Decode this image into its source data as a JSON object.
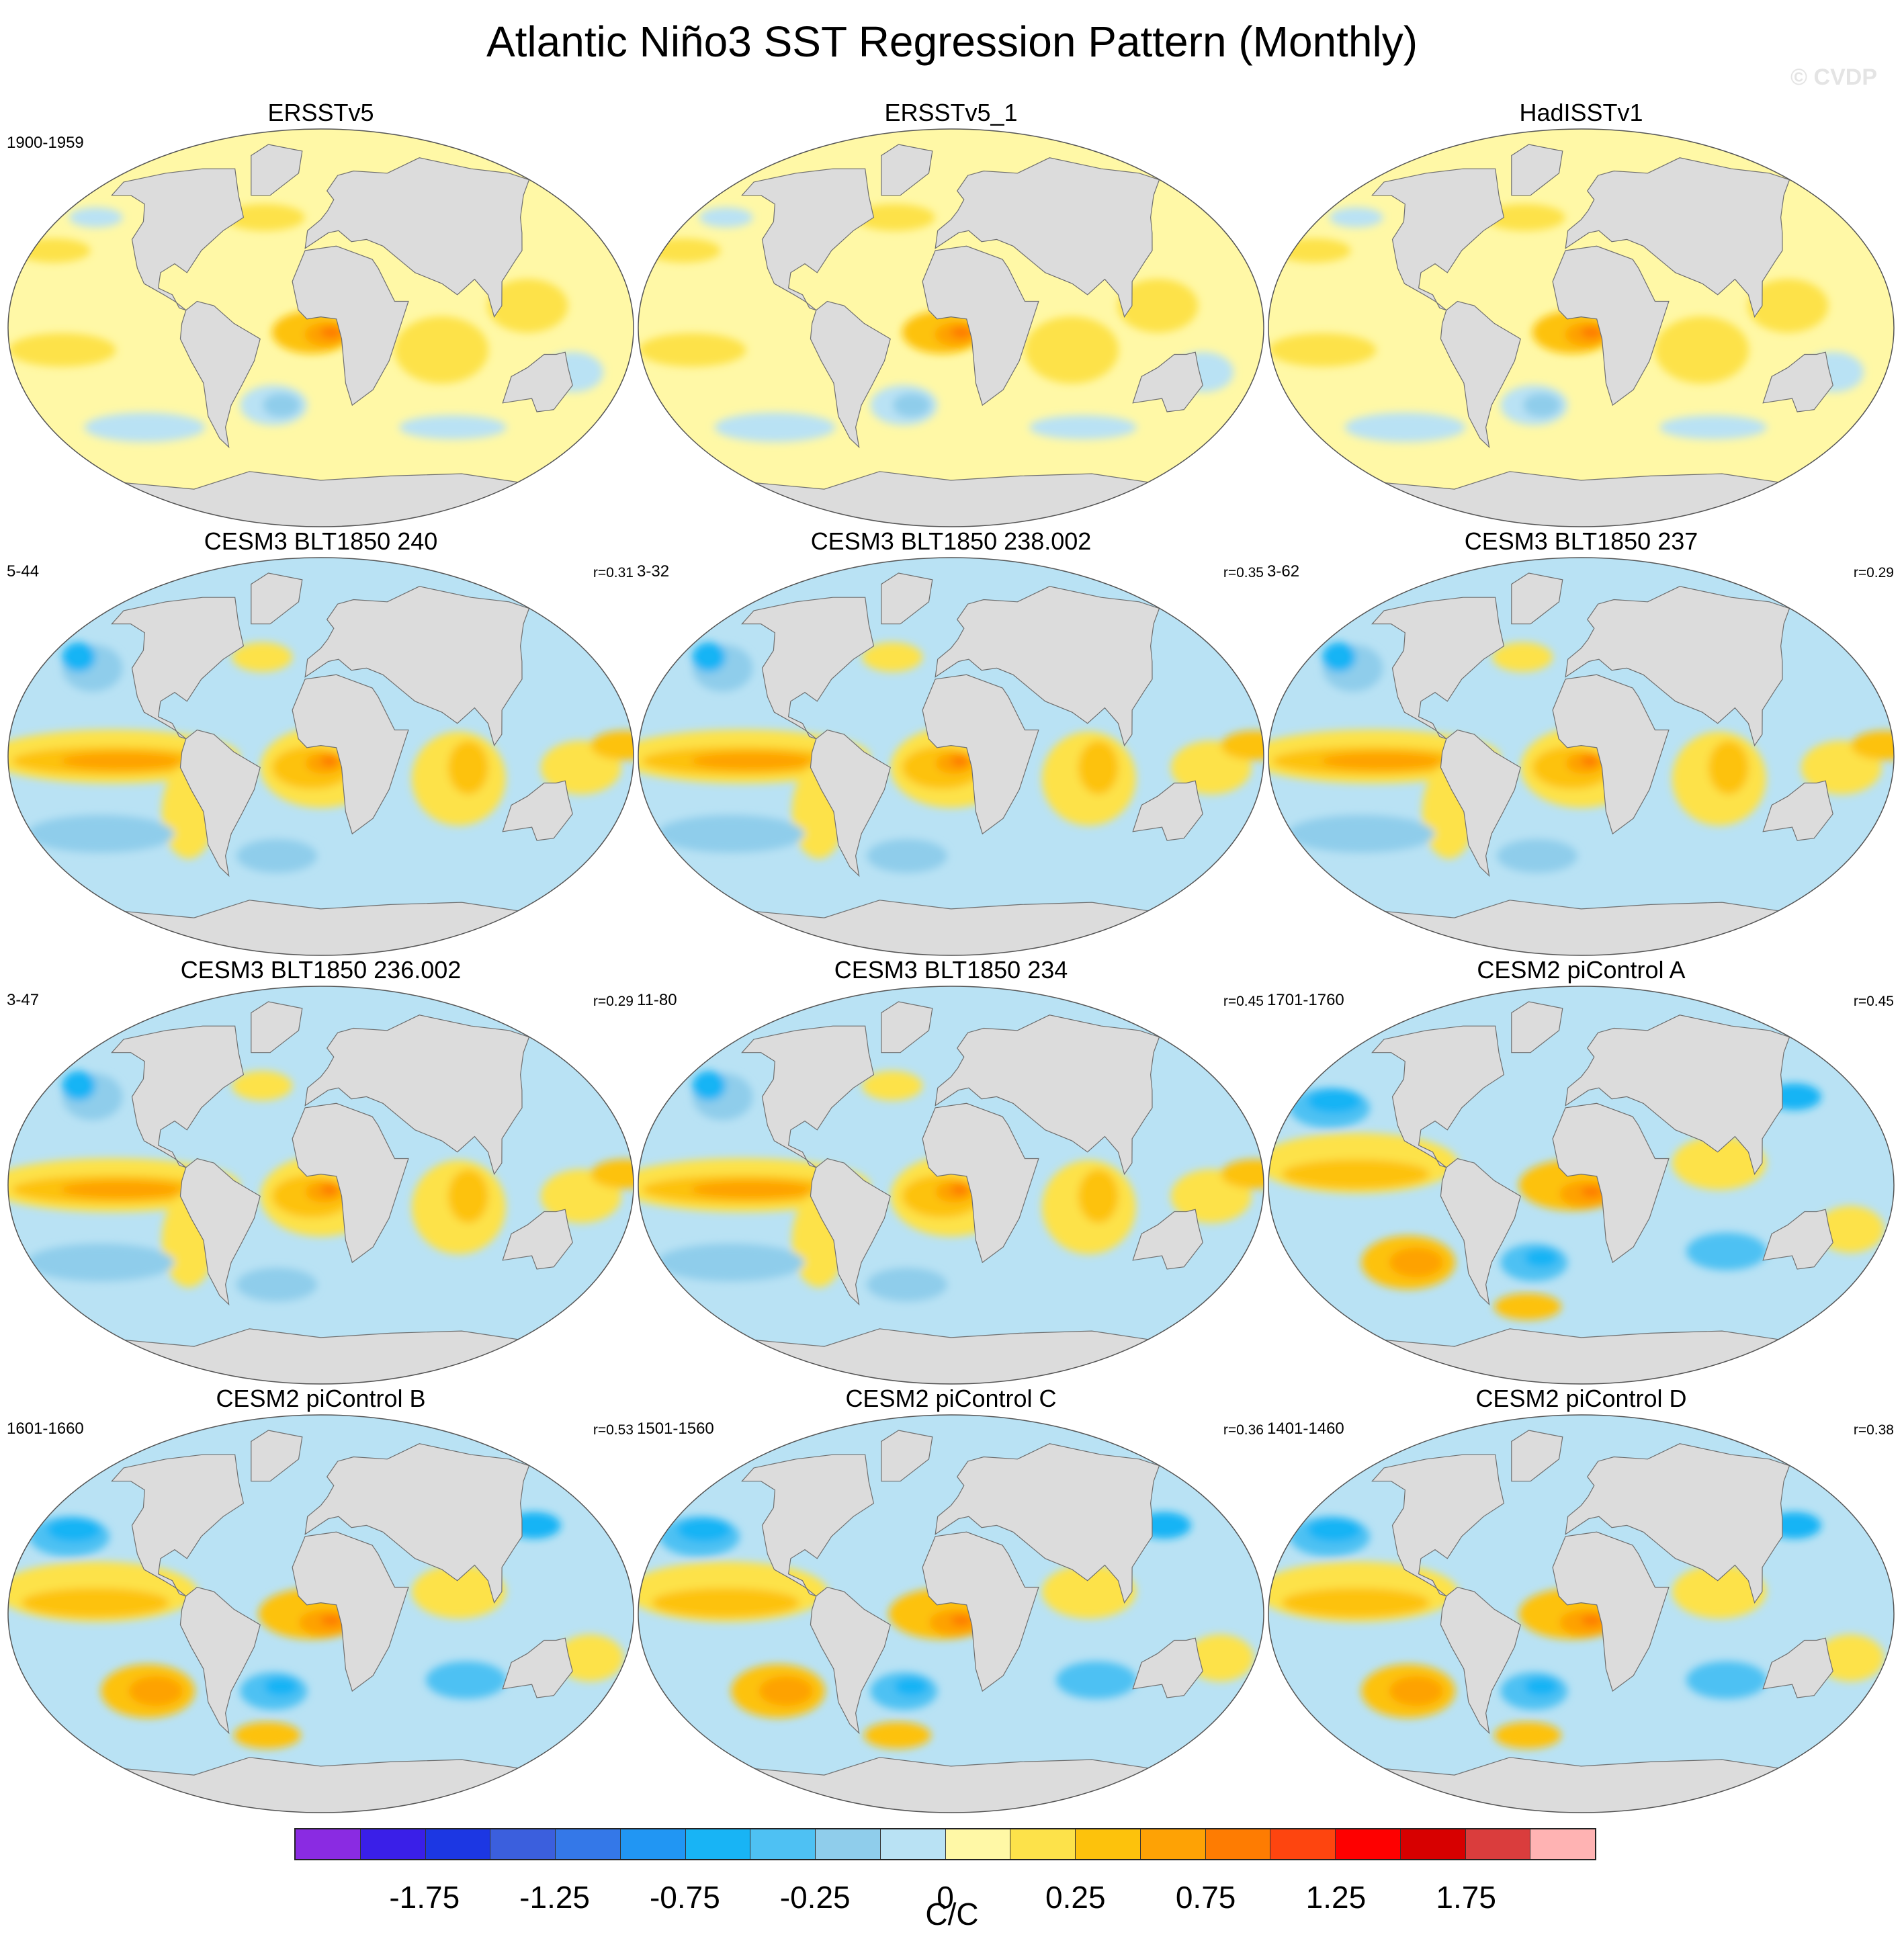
{
  "chart_data": {
    "type": "heatmap",
    "title": "Atlantic Niño3 SST Regression Pattern (Monthly)",
    "watermark": "© CVDP",
    "units": "C/C",
    "projection": "Robinson",
    "colorbar": {
      "colors": [
        "#8a2be2",
        "#3a1fe8",
        "#1c37e3",
        "#3b5fdd",
        "#3478e8",
        "#2196f3",
        "#18b4f5",
        "#4ec1f3",
        "#8fcdeb",
        "#b9e2f4",
        "#fff8a6",
        "#fde24a",
        "#fdc20c",
        "#fea205",
        "#fe7c02",
        "#fe450f",
        "#fe0000",
        "#d70000",
        "#da3d3d",
        "#ffb3b3"
      ],
      "labels": [
        "-1.75",
        "-1.25",
        "-0.75",
        "-0.25",
        "0",
        "0.25",
        "0.75",
        "1.25",
        "1.75"
      ]
    },
    "panels": [
      {
        "title": "ERSSTv5",
        "years": "1900-1959",
        "r": "",
        "style": "obs"
      },
      {
        "title": "ERSSTv5_1",
        "years": "",
        "r": "",
        "style": "obs"
      },
      {
        "title": "HadISSTv1",
        "years": "",
        "r": "",
        "style": "obs"
      },
      {
        "title": "CESM3 BLT1850 240",
        "years": "5-44",
        "r": "r=0.31",
        "style": "model"
      },
      {
        "title": "CESM3 BLT1850 238.002",
        "years": "3-32",
        "r": "r=0.35",
        "style": "model"
      },
      {
        "title": "CESM3 BLT1850 237",
        "years": "3-62",
        "r": "r=0.29",
        "style": "model"
      },
      {
        "title": "CESM3 BLT1850 236.002",
        "years": "3-47",
        "r": "r=0.29",
        "style": "model"
      },
      {
        "title": "CESM3 BLT1850 234",
        "years": "11-80",
        "r": "r=0.45",
        "style": "model"
      },
      {
        "title": "CESM2 piControl A",
        "years": "1701-1760",
        "r": "r=0.45",
        "style": "cesm2"
      },
      {
        "title": "CESM2 piControl B",
        "years": "1601-1660",
        "r": "r=0.53",
        "style": "cesm2"
      },
      {
        "title": "CESM2 piControl C",
        "years": "1501-1560",
        "r": "r=0.36",
        "style": "cesm2"
      },
      {
        "title": "CESM2 piControl D",
        "years": "1401-1460",
        "r": "r=0.38",
        "style": "cesm2"
      }
    ]
  }
}
